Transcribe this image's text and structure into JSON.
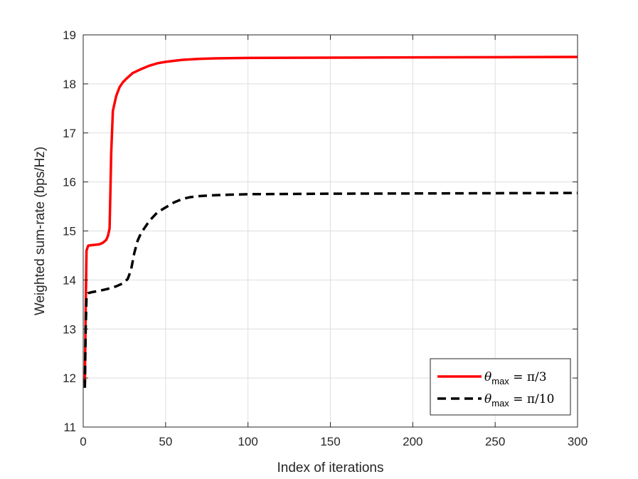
{
  "chart_data": {
    "type": "line",
    "title": "",
    "xlabel": "Index of iterations",
    "ylabel": "Weighted sum-rate  (bps/Hz)",
    "xlim": [
      0,
      300
    ],
    "ylim": [
      11,
      19
    ],
    "xticks": [
      0,
      50,
      100,
      150,
      200,
      250,
      300
    ],
    "yticks": [
      11,
      12,
      13,
      14,
      15,
      16,
      17,
      18,
      19
    ],
    "grid": true,
    "legend_position": "bottom-right",
    "series": [
      {
        "name": "θmax = π/3",
        "legend": {
          "symbol": "θ",
          "sub": "max",
          "rest": " = π/3"
        },
        "color": "#ff0000",
        "line_style": "solid",
        "x": [
          1,
          1.5,
          2,
          3,
          5,
          8,
          10,
          12,
          14,
          15,
          16,
          16.5,
          17,
          18,
          20,
          22,
          24,
          26,
          28,
          30,
          35,
          40,
          45,
          50,
          55,
          60,
          70,
          80,
          100,
          150,
          200,
          250,
          300
        ],
        "y": [
          11.9,
          13.4,
          14.6,
          14.7,
          14.71,
          14.72,
          14.73,
          14.76,
          14.82,
          14.9,
          15.05,
          15.8,
          16.6,
          17.45,
          17.75,
          17.93,
          18.03,
          18.1,
          18.16,
          18.22,
          18.3,
          18.37,
          18.42,
          18.45,
          18.47,
          18.49,
          18.51,
          18.52,
          18.53,
          18.535,
          18.54,
          18.545,
          18.55
        ]
      },
      {
        "name": "θmax = π/10",
        "legend": {
          "symbol": "θ",
          "sub": "max",
          "rest": " = π/10"
        },
        "color": "#000000",
        "line_style": "dashed",
        "x": [
          1,
          1.5,
          2,
          3,
          5,
          10,
          15,
          20,
          24,
          27,
          29,
          31,
          33,
          35,
          40,
          45,
          50,
          55,
          60,
          65,
          70,
          80,
          100,
          150,
          200,
          250,
          300
        ],
        "y": [
          11.8,
          13.0,
          13.65,
          13.73,
          13.75,
          13.78,
          13.82,
          13.87,
          13.93,
          14.02,
          14.2,
          14.55,
          14.8,
          14.95,
          15.2,
          15.38,
          15.48,
          15.58,
          15.65,
          15.69,
          15.71,
          15.73,
          15.75,
          15.76,
          15.765,
          15.77,
          15.775
        ]
      }
    ]
  }
}
